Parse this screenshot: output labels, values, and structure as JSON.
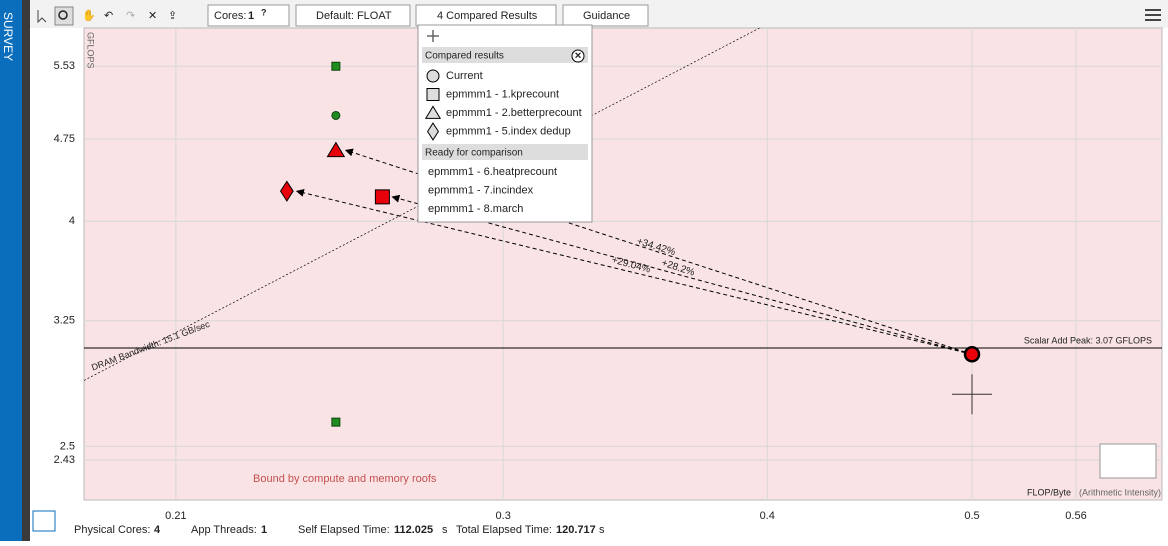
{
  "sidebar": {
    "label": "SURVEY"
  },
  "toolbar": {
    "cores_label": "Cores:",
    "cores_value": "1",
    "precision": "Default: FLOAT",
    "compare": "4 Compared Results",
    "guidance": "Guidance"
  },
  "help": "?",
  "compare_menu": {
    "compared_title": "Compared results",
    "ready_title": "Ready for comparison",
    "ready": [
      "epmmm1 - 6.heatprecount",
      "epmmm1 - 7.incindex",
      "epmmm1 - 8.march"
    ]
  },
  "chart_data": {
    "type": "roofline",
    "y_label": "GFLOPS",
    "x_label": "FLOP/Byte",
    "x_label_note": "(Arithmetic Intensity)",
    "region_label": "Bound by compute and memory roofs",
    "log_x": true,
    "log_y": true,
    "grid": true,
    "xlim": [
      0.19,
      0.615
    ],
    "ylim": [
      2.235,
      5.99
    ],
    "xticks": [
      0.21,
      0.3,
      0.4,
      0.5,
      0.56
    ],
    "yticks": [
      2.43,
      2.5,
      3.25,
      4,
      4.75,
      5.53
    ],
    "roofs": [
      {
        "label": "Scalar Add Peak: 3.07 GFLOPS",
        "value": 3.07
      },
      {
        "label": "DRAM Bandwidth: 15.1 GB/sec",
        "bandwidth": 15.1
      }
    ],
    "series": [
      {
        "name": "Current",
        "marker": "circle",
        "x": [
          0.5,
          0.25
        ],
        "values": [
          3.03,
          4.99
        ],
        "colors": [
          "#e8000b",
          "#1e8c1e"
        ]
      },
      {
        "name": "epmmm1 - 1.kprecount",
        "marker": "square",
        "x": [
          0.263,
          0.25,
          0.25
        ],
        "values": [
          4.21,
          5.53,
          2.63
        ],
        "colors": [
          "#e8000b",
          "#1e8c1e",
          "#1e8c1e"
        ]
      },
      {
        "name": "epmmm1 - 2.betterprecount",
        "marker": "triangle",
        "x": [
          0.25
        ],
        "values": [
          4.64
        ],
        "colors": [
          "#e8000b"
        ]
      },
      {
        "name": "epmmm1 - 5.index dedup",
        "marker": "diamond",
        "x": [
          0.237
        ],
        "values": [
          4.26
        ],
        "colors": [
          "#e8000b"
        ]
      }
    ],
    "annotations": [
      "+34.42%",
      "+29.04%",
      "+28.2%"
    ]
  },
  "status": {
    "cores_label": "Physical Cores:",
    "cores": "4",
    "threads_label": "App Threads:",
    "threads": "1",
    "self_label": "Self Elapsed Time:",
    "self": "112.025",
    "total_label": "Total Elapsed Time:",
    "total": "120.717",
    "unit": "s"
  }
}
